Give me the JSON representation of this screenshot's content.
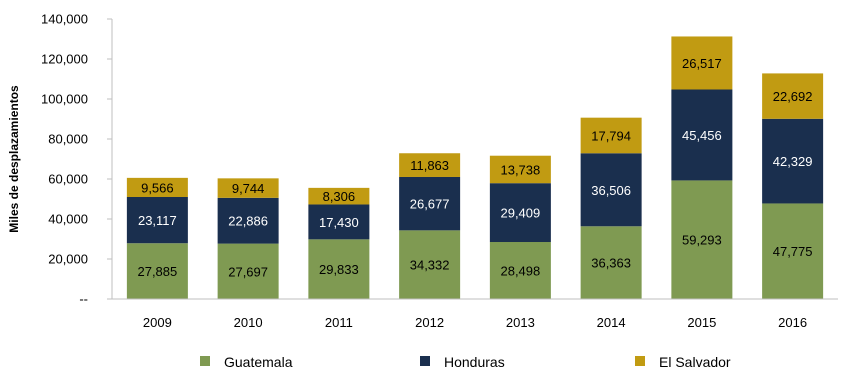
{
  "chart_data": {
    "type": "bar",
    "stacked": true,
    "title": "",
    "xlabel": "",
    "ylabel": "Miles de desplazamientos",
    "ylim": [
      0,
      140000
    ],
    "yticks": [
      0,
      20000,
      40000,
      60000,
      80000,
      100000,
      120000,
      140000
    ],
    "ytick_labels": [
      "--",
      "20,000",
      "40,000",
      "60,000",
      "80,000",
      "100,000",
      "120,000",
      "140,000"
    ],
    "grid": false,
    "legend": "bottom",
    "categories": [
      "2009",
      "2010",
      "2011",
      "2012",
      "2013",
      "2014",
      "2015",
      "2016"
    ],
    "series": [
      {
        "name": "Guatemala",
        "color": "#7f9a52",
        "label_color": "#000000",
        "values": [
          27885,
          27697,
          29833,
          34332,
          28498,
          36363,
          59293,
          47775
        ],
        "labels": [
          "27,885",
          "27,697",
          "29,833",
          "34,332",
          "28,498",
          "36,363",
          "59,293",
          "47,775"
        ]
      },
      {
        "name": "Honduras",
        "color": "#1a2f4e",
        "label_color": "#ffffff",
        "values": [
          23117,
          22886,
          17430,
          26677,
          29409,
          36506,
          45456,
          42329
        ],
        "labels": [
          "23,117",
          "22,886",
          "17,430",
          "26,677",
          "29,409",
          "36,506",
          "45,456",
          "42,329"
        ]
      },
      {
        "name": "El Salvador",
        "color": "#c19b12",
        "label_color": "#000000",
        "values": [
          9566,
          9744,
          8306,
          11863,
          13738,
          17794,
          26517,
          22692
        ],
        "labels": [
          "9,566",
          "9,744",
          "8,306",
          "11,863",
          "13,738",
          "17,794",
          "26,517",
          "22,692"
        ]
      }
    ]
  }
}
